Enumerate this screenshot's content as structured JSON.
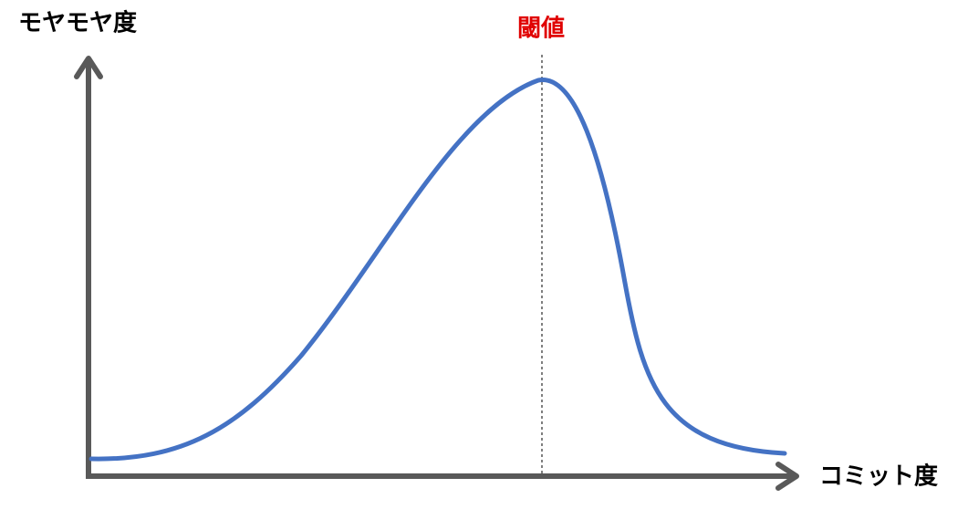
{
  "y_axis_label": "モヤモヤ度",
  "threshold_label": "閾値",
  "x_axis_label": "コミット度"
}
